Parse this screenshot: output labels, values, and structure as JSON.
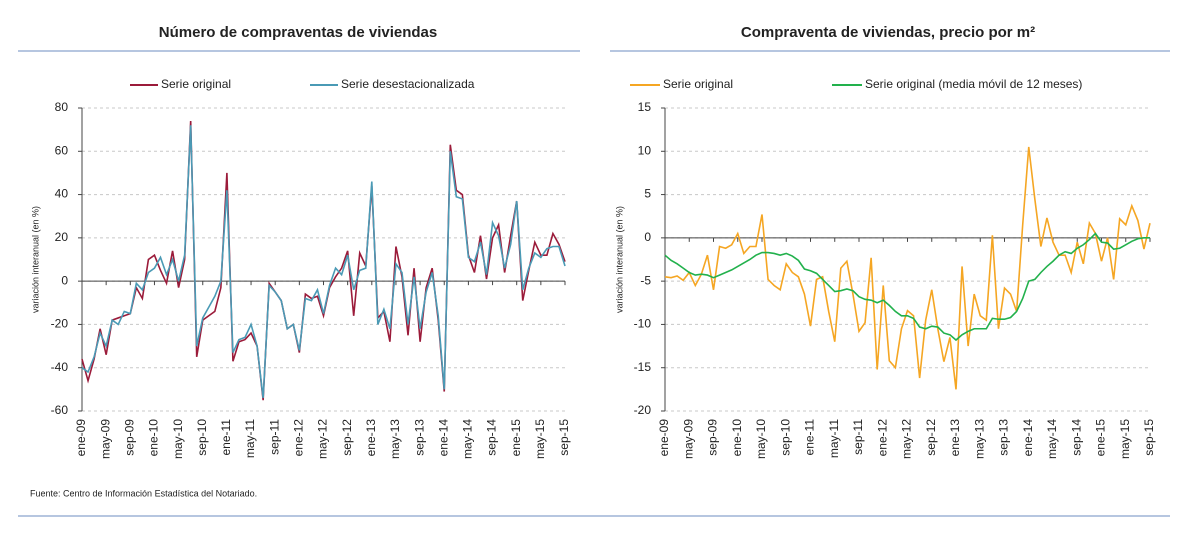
{
  "chart_data": [
    {
      "type": "line",
      "title": "Número de compraventas de viviendas",
      "ylabel": "variación interanual (en %)",
      "categories": [
        "ene-09",
        null,
        null,
        null,
        "may-09",
        null,
        null,
        null,
        "sep-09",
        null,
        null,
        null,
        "ene-10",
        null,
        null,
        null,
        "may-10",
        null,
        null,
        null,
        "sep-10",
        null,
        null,
        null,
        "ene-11",
        null,
        null,
        null,
        "may-11",
        null,
        null,
        null,
        "sep-11",
        null,
        null,
        null,
        "ene-12",
        null,
        null,
        null,
        "may-12",
        null,
        null,
        null,
        "sep-12",
        null,
        null,
        null,
        "ene-13",
        null,
        null,
        null,
        "may-13",
        null,
        null,
        null,
        "sep-13",
        null,
        null,
        null,
        "ene-14",
        null,
        null,
        null,
        "may-14",
        null,
        null,
        null,
        "sep-14",
        null,
        null,
        null,
        "ene-15",
        null,
        null,
        null,
        "may-15",
        null,
        null,
        null,
        "sep-15"
      ],
      "series": [
        {
          "name": "Serie original",
          "color": "#9b1b3a",
          "values": [
            -36,
            -46,
            -36,
            -22,
            -34,
            -18,
            -17,
            -16,
            -15,
            -3,
            -8,
            10,
            12,
            5,
            -1,
            14,
            -3,
            10,
            74,
            -35,
            -18,
            -16,
            -14,
            -3,
            50,
            -37,
            -28,
            -27,
            -24,
            -30,
            -55,
            -1,
            -5,
            -9,
            -22,
            -20,
            -33,
            -6,
            -8,
            -7,
            -16,
            -3,
            2,
            6,
            14,
            -16,
            13,
            7,
            44,
            -17,
            -14,
            -28,
            16,
            2,
            -25,
            6,
            -28,
            -3,
            6,
            -18,
            -51,
            63,
            42,
            40,
            12,
            4,
            21,
            1,
            20,
            26,
            4,
            21,
            37,
            -9,
            5,
            18,
            12,
            12,
            22,
            17,
            9
          ]
        },
        {
          "name": "Serie desestacionalizada",
          "color": "#4a9ab5",
          "values": [
            -40,
            -42,
            -35,
            -24,
            -30,
            -18,
            -20,
            -14,
            -15,
            -1,
            -4,
            4,
            6,
            11,
            3,
            10,
            0,
            12,
            72,
            -30,
            -17,
            -12,
            -7,
            0,
            42,
            -33,
            -27,
            -26,
            -20,
            -30,
            -54,
            -2,
            -5,
            -9,
            -22,
            -20,
            -32,
            -8,
            -9,
            -4,
            -15,
            -2,
            6,
            3,
            12,
            -4,
            5,
            6,
            46,
            -20,
            -13,
            -22,
            8,
            4,
            -20,
            2,
            -22,
            -5,
            4,
            -16,
            -50,
            60,
            39,
            38,
            11,
            9,
            18,
            3,
            27,
            21,
            6,
            17,
            37,
            -4,
            6,
            13,
            11,
            15,
            16,
            16,
            7
          ]
        }
      ],
      "ylim": [
        -60,
        80
      ],
      "yticks": [
        -60,
        -40,
        -20,
        0,
        20,
        40,
        60,
        80
      ],
      "grid": true,
      "legend": "top"
    },
    {
      "type": "line",
      "title": "Compraventa de viviendas, precio por m²",
      "ylabel": "variación interanual (en %)",
      "categories": [
        "ene-09",
        null,
        null,
        null,
        "may-09",
        null,
        null,
        null,
        "sep-09",
        null,
        null,
        null,
        "ene-10",
        null,
        null,
        null,
        "may-10",
        null,
        null,
        null,
        "sep-10",
        null,
        null,
        null,
        "ene-11",
        null,
        null,
        null,
        "may-11",
        null,
        null,
        null,
        "sep-11",
        null,
        null,
        null,
        "ene-12",
        null,
        null,
        null,
        "may-12",
        null,
        null,
        null,
        "sep-12",
        null,
        null,
        null,
        "ene-13",
        null,
        null,
        null,
        "may-13",
        null,
        null,
        null,
        "sep-13",
        null,
        null,
        null,
        "ene-14",
        null,
        null,
        null,
        "may-14",
        null,
        null,
        null,
        "sep-14",
        null,
        null,
        null,
        "ene-15",
        null,
        null,
        null,
        "may-15",
        null,
        null,
        null,
        "sep-15"
      ],
      "series": [
        {
          "name": "Serie original",
          "color": "#f5a623",
          "values": [
            -4.5,
            -4.6,
            -4.4,
            -4.9,
            -4.0,
            -5.5,
            -4.2,
            -2.0,
            -6.0,
            -1.0,
            -1.2,
            -0.8,
            0.5,
            -1.8,
            -1.0,
            -1.0,
            2.7,
            -4.8,
            -5.5,
            -6.0,
            -3.0,
            -4.0,
            -4.5,
            -6.5,
            -10.2,
            -4.8,
            -4.5,
            -8.5,
            -12.0,
            -3.5,
            -2.7,
            -6.5,
            -10.8,
            -9.8,
            -2.3,
            -15.2,
            -5.5,
            -14.2,
            -15.0,
            -10.5,
            -8.4,
            -9.0,
            -16.2,
            -9.5,
            -6.0,
            -10.5,
            -14.3,
            -11.5,
            -17.5,
            -3.3,
            -12.5,
            -6.5,
            -9.0,
            -9.5,
            0.3,
            -10.5,
            -5.8,
            -6.5,
            -8.5,
            1.5,
            10.5,
            4.5,
            -1.0,
            2.3,
            -0.5,
            -2.0,
            -2.0,
            -4.0,
            -0.5,
            -3.0,
            1.7,
            0.5,
            -2.7,
            0.0,
            -4.8,
            2.2,
            1.5,
            3.7,
            2.0,
            -1.3,
            1.7
          ]
        },
        {
          "name": "Serie original (media móvil de 12 meses)",
          "color": "#22b14c",
          "values": [
            -2.0,
            -2.6,
            -3.0,
            -3.5,
            -4.0,
            -4.3,
            -4.2,
            -4.3,
            -4.6,
            -4.3,
            -4.0,
            -3.7,
            -3.3,
            -2.9,
            -2.5,
            -2.0,
            -1.7,
            -1.7,
            -1.8,
            -2.0,
            -1.8,
            -2.1,
            -2.6,
            -3.6,
            -3.8,
            -4.1,
            -4.8,
            -5.5,
            -6.2,
            -6.1,
            -5.9,
            -6.1,
            -6.8,
            -7.1,
            -7.2,
            -7.5,
            -7.2,
            -7.8,
            -8.5,
            -9.0,
            -9.0,
            -9.3,
            -10.3,
            -10.5,
            -10.2,
            -10.3,
            -11.0,
            -11.2,
            -11.8,
            -11.2,
            -10.8,
            -10.5,
            -10.5,
            -10.5,
            -9.3,
            -9.4,
            -9.4,
            -9.2,
            -8.5,
            -7.0,
            -5.0,
            -4.8,
            -4.0,
            -3.3,
            -2.7,
            -2.0,
            -1.6,
            -1.8,
            -1.2,
            -0.8,
            -0.2,
            0.5,
            -0.5,
            -0.6,
            -1.3,
            -1.2,
            -0.8,
            -0.4,
            -0.1,
            0.0,
            0.0
          ]
        }
      ],
      "ylim": [
        -20,
        15
      ],
      "yticks": [
        -20,
        -15,
        -10,
        -5,
        0,
        5,
        10,
        15
      ],
      "grid": true,
      "legend": "top"
    }
  ],
  "footnote": "Fuente: Centro de Información Estadística del Notariado."
}
